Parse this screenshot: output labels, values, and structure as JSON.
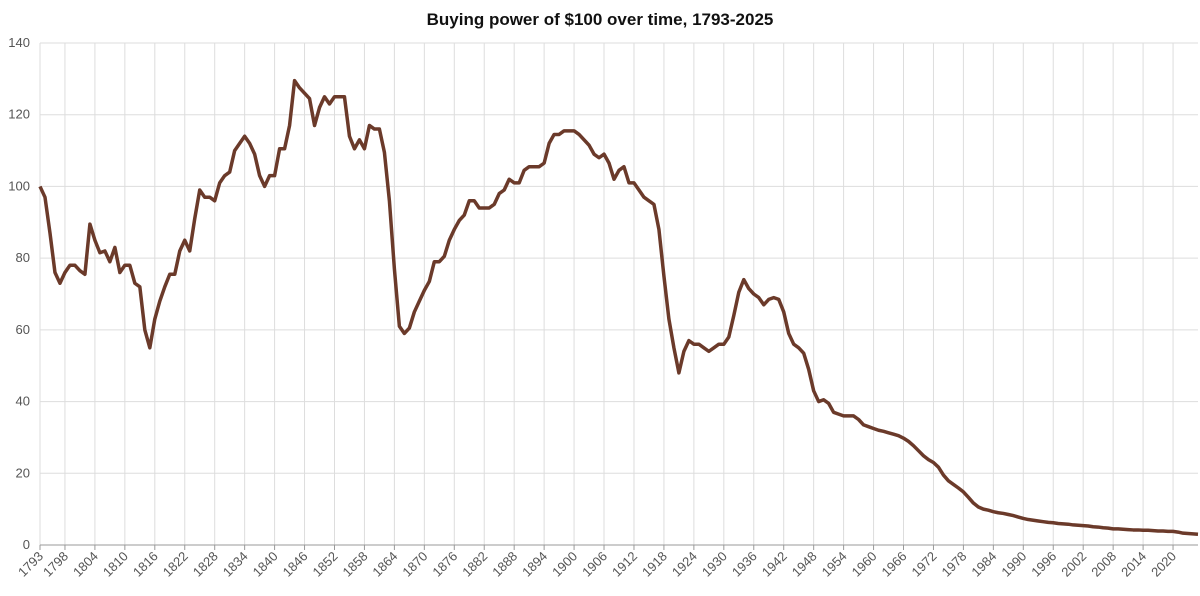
{
  "chart_data": {
    "type": "line",
    "title": "Buying power of $100 over time, 1793-2025",
    "x": [
      1793,
      1794,
      1795,
      1796,
      1797,
      1798,
      1799,
      1800,
      1801,
      1802,
      1803,
      1804,
      1805,
      1806,
      1807,
      1808,
      1809,
      1810,
      1811,
      1812,
      1813,
      1814,
      1815,
      1816,
      1817,
      1818,
      1819,
      1820,
      1821,
      1822,
      1823,
      1824,
      1825,
      1826,
      1827,
      1828,
      1829,
      1830,
      1831,
      1832,
      1833,
      1834,
      1835,
      1836,
      1837,
      1838,
      1839,
      1840,
      1841,
      1842,
      1843,
      1844,
      1845,
      1846,
      1847,
      1848,
      1849,
      1850,
      1851,
      1852,
      1853,
      1854,
      1855,
      1856,
      1857,
      1858,
      1859,
      1860,
      1861,
      1862,
      1863,
      1864,
      1865,
      1866,
      1867,
      1868,
      1869,
      1870,
      1871,
      1872,
      1873,
      1874,
      1875,
      1876,
      1877,
      1878,
      1879,
      1880,
      1881,
      1882,
      1883,
      1884,
      1885,
      1886,
      1887,
      1888,
      1889,
      1890,
      1891,
      1892,
      1893,
      1894,
      1895,
      1896,
      1897,
      1898,
      1899,
      1900,
      1901,
      1902,
      1903,
      1904,
      1905,
      1906,
      1907,
      1908,
      1909,
      1910,
      1911,
      1912,
      1913,
      1914,
      1915,
      1916,
      1917,
      1918,
      1919,
      1920,
      1921,
      1922,
      1923,
      1924,
      1925,
      1926,
      1927,
      1928,
      1929,
      1930,
      1931,
      1932,
      1933,
      1934,
      1935,
      1936,
      1937,
      1938,
      1939,
      1940,
      1941,
      1942,
      1943,
      1944,
      1945,
      1946,
      1947,
      1948,
      1949,
      1950,
      1951,
      1952,
      1953,
      1954,
      1955,
      1956,
      1957,
      1958,
      1959,
      1960,
      1961,
      1962,
      1963,
      1964,
      1965,
      1966,
      1967,
      1968,
      1969,
      1970,
      1971,
      1972,
      1973,
      1974,
      1975,
      1976,
      1977,
      1978,
      1979,
      1980,
      1981,
      1982,
      1983,
      1984,
      1985,
      1986,
      1987,
      1988,
      1989,
      1990,
      1991,
      1992,
      1993,
      1994,
      1995,
      1996,
      1997,
      1998,
      1999,
      2000,
      2001,
      2002,
      2003,
      2004,
      2005,
      2006,
      2007,
      2008,
      2009,
      2010,
      2011,
      2012,
      2013,
      2014,
      2015,
      2016,
      2017,
      2018,
      2019,
      2020,
      2021,
      2022,
      2023,
      2024,
      2025
    ],
    "series": [
      {
        "color": "#6b3a2a",
        "values": [
          100,
          97,
          87,
          76,
          73,
          76,
          78,
          78,
          76.5,
          75.5,
          89.5,
          85,
          81.5,
          82,
          79,
          83,
          76,
          78,
          78,
          73,
          72,
          60,
          55,
          63,
          68,
          72,
          75.5,
          75.5,
          82,
          85,
          82,
          91,
          99,
          97,
          97,
          96,
          101,
          103,
          104,
          110,
          112,
          114,
          112,
          109,
          103,
          100,
          103,
          103,
          110.5,
          110.5,
          117,
          129.5,
          127.5,
          126,
          124.5,
          117,
          122,
          125,
          123,
          125,
          125,
          125,
          114,
          110.5,
          113,
          110.5,
          117,
          116,
          116,
          109.5,
          96,
          77,
          61,
          59,
          60.5,
          65,
          68,
          71,
          73.5,
          79,
          79,
          80.5,
          85,
          88,
          90.5,
          92,
          96,
          96,
          94,
          94,
          94,
          95,
          98,
          99,
          102,
          101,
          101,
          104.5,
          105.5,
          105.5,
          105.5,
          106.5,
          112,
          114.5,
          114.5,
          115.5,
          115.5,
          115.5,
          114.5,
          113,
          111.5,
          109,
          108,
          109,
          106.5,
          102,
          104.5,
          105.5,
          101,
          101,
          99,
          97,
          96,
          95,
          88,
          75,
          63,
          55,
          48,
          54,
          57,
          56,
          56,
          55,
          54,
          55,
          56,
          56,
          58,
          64,
          70.5,
          74,
          71.5,
          70,
          69,
          67,
          68.5,
          69,
          68.5,
          65,
          59,
          56,
          55,
          53.5,
          49,
          43,
          40,
          40.5,
          39.5,
          37,
          36.5,
          36,
          36,
          36,
          35,
          33.5,
          33,
          32.5,
          32,
          31.7,
          31.3,
          30.9,
          30.5,
          29.8,
          28.9,
          27.7,
          26.3,
          24.9,
          23.8,
          23,
          21.7,
          19.5,
          17.9,
          16.9,
          15.9,
          14.8,
          13.3,
          11.7,
          10.6,
          10,
          9.7,
          9.3,
          9,
          8.8,
          8.5,
          8.2,
          7.8,
          7.4,
          7.1,
          6.9,
          6.7,
          6.5,
          6.3,
          6.2,
          6,
          5.9,
          5.8,
          5.6,
          5.5,
          5.4,
          5.3,
          5.1,
          5,
          4.8,
          4.7,
          4.5,
          4.5,
          4.4,
          4.3,
          4.2,
          4.2,
          4.1,
          4.1,
          4,
          3.9,
          3.9,
          3.8,
          3.8,
          3.6,
          3.3,
          3.2,
          3.1,
          3.0
        ]
      }
    ],
    "xlim": [
      1793,
      2025
    ],
    "xticks": [
      1793,
      1798,
      1804,
      1810,
      1816,
      1822,
      1828,
      1834,
      1840,
      1846,
      1852,
      1858,
      1864,
      1870,
      1876,
      1882,
      1888,
      1894,
      1900,
      1906,
      1912,
      1918,
      1924,
      1930,
      1936,
      1942,
      1948,
      1954,
      1960,
      1966,
      1972,
      1978,
      1984,
      1990,
      1996,
      2002,
      2008,
      2014,
      2020
    ],
    "ylim": [
      0,
      140
    ],
    "yticks": [
      0,
      20,
      40,
      60,
      80,
      100,
      120,
      140
    ],
    "grid": true
  }
}
